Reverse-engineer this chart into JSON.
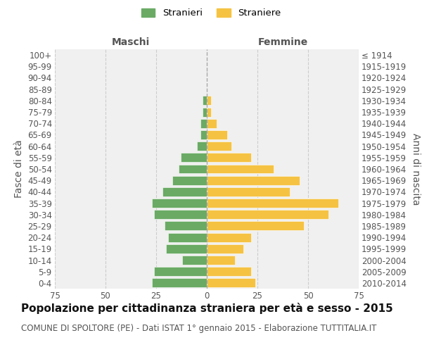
{
  "age_groups": [
    "0-4",
    "5-9",
    "10-14",
    "15-19",
    "20-24",
    "25-29",
    "30-34",
    "35-39",
    "40-44",
    "45-49",
    "50-54",
    "55-59",
    "60-64",
    "65-69",
    "70-74",
    "75-79",
    "80-84",
    "85-89",
    "90-94",
    "95-99",
    "100+"
  ],
  "birth_years": [
    "2010-2014",
    "2005-2009",
    "2000-2004",
    "1995-1999",
    "1990-1994",
    "1985-1989",
    "1980-1984",
    "1975-1979",
    "1970-1974",
    "1965-1969",
    "1960-1964",
    "1955-1959",
    "1950-1954",
    "1945-1949",
    "1940-1944",
    "1935-1939",
    "1930-1934",
    "1925-1929",
    "1920-1924",
    "1915-1919",
    "≤ 1914"
  ],
  "males": [
    27,
    26,
    12,
    20,
    19,
    21,
    26,
    27,
    22,
    17,
    14,
    13,
    5,
    3,
    3,
    2,
    2,
    0,
    0,
    0,
    0
  ],
  "females": [
    24,
    22,
    14,
    18,
    22,
    48,
    60,
    65,
    41,
    46,
    33,
    22,
    12,
    10,
    5,
    2,
    2,
    0,
    0,
    0,
    0
  ],
  "male_color": "#6aaa64",
  "female_color": "#f5c242",
  "bar_edge_color": "#ffffff",
  "background_color": "#ffffff",
  "plot_bg_color": "#f0f0f0",
  "grid_color": "#cccccc",
  "title": "Popolazione per cittadinanza straniera per età e sesso - 2015",
  "subtitle": "COMUNE DI SPOLTORE (PE) - Dati ISTAT 1° gennaio 2015 - Elaborazione TUTTITALIA.IT",
  "xlabel_left": "Maschi",
  "xlabel_right": "Femmine",
  "ylabel_left": "Fasce di età",
  "ylabel_right": "Anni di nascita",
  "xlim": 75,
  "legend_labels": [
    "Stranieri",
    "Straniere"
  ],
  "title_fontsize": 11,
  "subtitle_fontsize": 8.5,
  "axis_label_fontsize": 10,
  "tick_fontsize": 8.5,
  "legend_fontsize": 9.5
}
